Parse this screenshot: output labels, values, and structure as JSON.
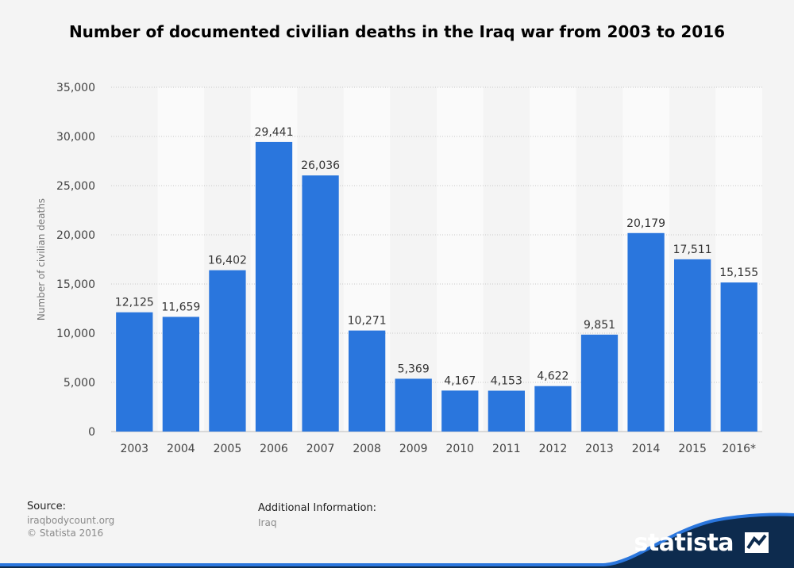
{
  "title": "Number of documented civilian deaths in the Iraq war from 2003 to 2016",
  "colors": {
    "bar": "#2a76dd",
    "background": "#f4f4f4",
    "footer_wave": "#0d2b4e",
    "footer_accent": "#2a76dd"
  },
  "chart_data": {
    "type": "bar",
    "title": "Number of documented civilian deaths in the Iraq war from 2003 to 2016",
    "xlabel": "",
    "ylabel": "Number of civilian deaths",
    "categories": [
      "2003",
      "2004",
      "2005",
      "2006",
      "2007",
      "2008",
      "2009",
      "2010",
      "2011",
      "2012",
      "2013",
      "2014",
      "2015",
      "2016*"
    ],
    "values": [
      12125,
      11659,
      16402,
      29441,
      26036,
      10271,
      5369,
      4167,
      4153,
      4622,
      9851,
      20179,
      17511,
      15155
    ],
    "value_labels": [
      "12,125",
      "11,659",
      "16,402",
      "29,441",
      "26,036",
      "10,271",
      "5,369",
      "4,167",
      "4,153",
      "4,622",
      "9,851",
      "20,179",
      "17,511",
      "15,155"
    ],
    "ylim": [
      0,
      35000
    ],
    "yticks": [
      0,
      5000,
      10000,
      15000,
      20000,
      25000,
      30000,
      35000
    ],
    "ytick_labels": [
      "0",
      "5,000",
      "10,000",
      "15,000",
      "20,000",
      "25,000",
      "30,000",
      "35,000"
    ],
    "grid": true
  },
  "footer": {
    "source_label": "Source:",
    "source_lines": [
      "iraqbodycount.org",
      "© Statista 2016"
    ],
    "additional_label": "Additional Information:",
    "additional_text": "Iraq",
    "brand": "statista"
  }
}
